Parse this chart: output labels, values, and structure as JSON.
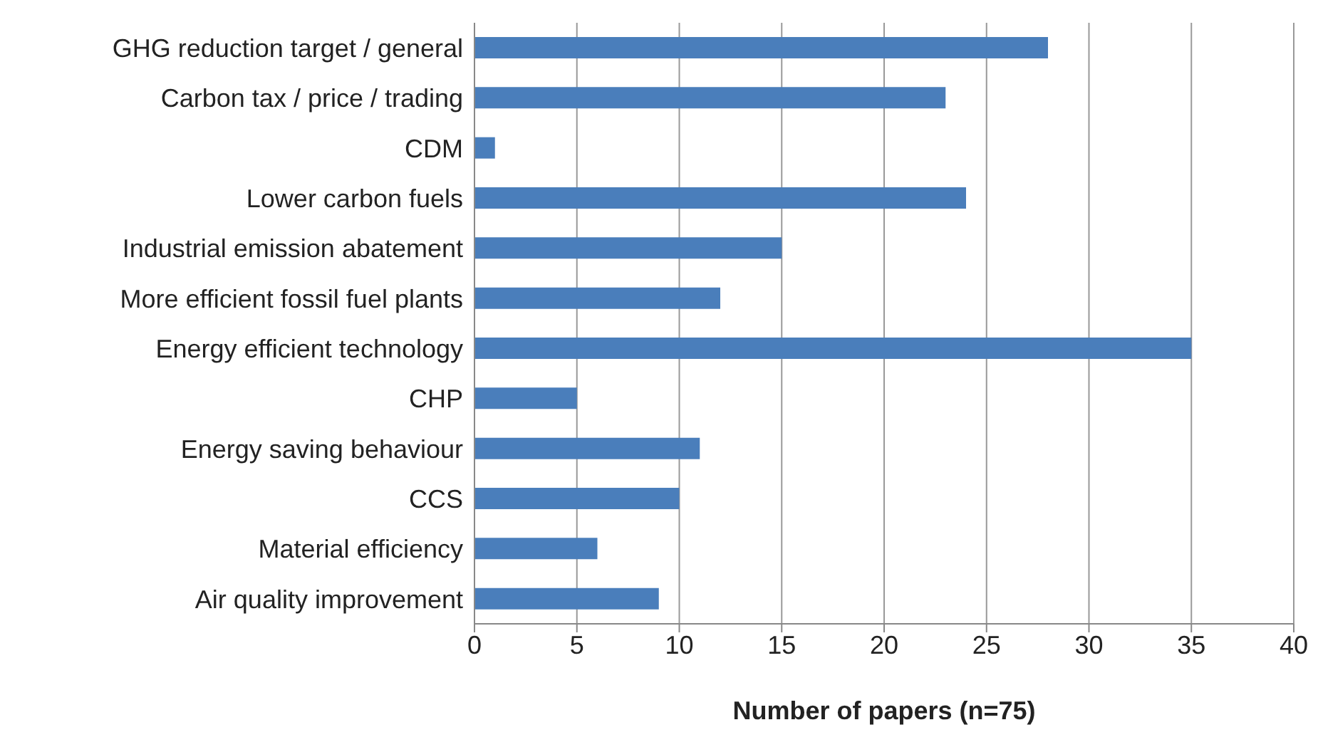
{
  "chart_data": {
    "type": "bar",
    "orientation": "horizontal",
    "xlabel": "Number of papers (n=75)",
    "categories": [
      "GHG reduction target / general",
      "Carbon tax / price / trading",
      "CDM",
      "Lower carbon fuels",
      "Industrial emission abatement",
      "More efficient fossil fuel plants",
      "Energy efficient technology",
      "CHP",
      "Energy saving behaviour",
      "CCS",
      "Material efficiency",
      "Air quality improvement"
    ],
    "values": [
      28,
      23,
      1,
      24,
      15,
      12,
      35,
      5,
      11,
      10,
      6,
      9
    ],
    "color": "#4a7ebb",
    "xlim": [
      0,
      40
    ],
    "xticks": [
      0,
      5,
      10,
      15,
      20,
      25,
      30,
      35,
      40
    ],
    "grid": "x",
    "legend": false
  }
}
